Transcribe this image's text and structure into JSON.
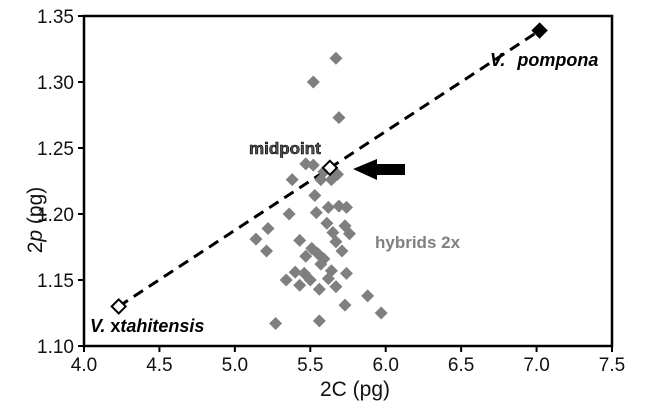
{
  "chart_data": {
    "type": "scatter",
    "xlabel": "2C (pg)",
    "ylabel_main": "2",
    "ylabel_italic": "p",
    "ylabel_unit": " (pg)",
    "xlim": [
      4.0,
      7.5
    ],
    "ylim": [
      1.1,
      1.35
    ],
    "x_ticks": [
      4.0,
      4.5,
      5.0,
      5.5,
      6.0,
      6.5,
      7.0,
      7.5
    ],
    "x_tick_labels": [
      "4.0",
      "4.5",
      "5.0",
      "5.5",
      "6.0",
      "6.5",
      "7.0",
      "7.5"
    ],
    "y_ticks": [
      1.1,
      1.15,
      1.2,
      1.25,
      1.3,
      1.35
    ],
    "y_tick_labels": [
      "1.10",
      "1.15",
      "1.20",
      "1.25",
      "1.30",
      "1.35"
    ],
    "grid": false,
    "series": [
      {
        "name": "hybrids 2x",
        "color": "#7f7f7f",
        "marker": "diamond",
        "points": [
          [
            5.52,
            1.3
          ],
          [
            5.67,
            1.318
          ],
          [
            5.69,
            1.273
          ],
          [
            5.47,
            1.238
          ],
          [
            5.52,
            1.237
          ],
          [
            5.59,
            1.232
          ],
          [
            5.57,
            1.226
          ],
          [
            5.64,
            1.226
          ],
          [
            5.68,
            1.23
          ],
          [
            5.38,
            1.226
          ],
          [
            5.53,
            1.214
          ],
          [
            5.62,
            1.205
          ],
          [
            5.69,
            1.206
          ],
          [
            5.74,
            1.205
          ],
          [
            5.36,
            1.2
          ],
          [
            5.54,
            1.201
          ],
          [
            5.22,
            1.189
          ],
          [
            5.61,
            1.193
          ],
          [
            5.73,
            1.191
          ],
          [
            5.65,
            1.186
          ],
          [
            5.76,
            1.185
          ],
          [
            5.14,
            1.181
          ],
          [
            5.43,
            1.18
          ],
          [
            5.67,
            1.179
          ],
          [
            5.21,
            1.172
          ],
          [
            5.51,
            1.174
          ],
          [
            5.55,
            1.17
          ],
          [
            5.47,
            1.168
          ],
          [
            5.59,
            1.166
          ],
          [
            5.71,
            1.172
          ],
          [
            5.57,
            1.162
          ],
          [
            5.4,
            1.156
          ],
          [
            5.46,
            1.155
          ],
          [
            5.64,
            1.157
          ],
          [
            5.74,
            1.155
          ],
          [
            5.34,
            1.15
          ],
          [
            5.5,
            1.15
          ],
          [
            5.62,
            1.151
          ],
          [
            5.43,
            1.146
          ],
          [
            5.56,
            1.143
          ],
          [
            5.67,
            1.145
          ],
          [
            5.73,
            1.131
          ],
          [
            5.88,
            1.138
          ],
          [
            5.97,
            1.125
          ],
          [
            5.56,
            1.119
          ],
          [
            5.27,
            1.117
          ]
        ]
      },
      {
        "name": "V. pompona",
        "color": "#000000",
        "marker": "diamond-filled",
        "points": [
          [
            7.02,
            1.339
          ]
        ]
      },
      {
        "name": "V. xtahitensis",
        "color": "#000000",
        "marker": "diamond-open",
        "points": [
          [
            4.23,
            1.13
          ]
        ]
      },
      {
        "name": "midpoint",
        "color": "#000000",
        "marker": "diamond-open",
        "points": [
          [
            5.63,
            1.235
          ]
        ]
      }
    ],
    "trend_line": {
      "from": [
        4.23,
        1.13
      ],
      "to": [
        7.02,
        1.339
      ],
      "style": "dashed"
    },
    "annotations": {
      "midpoint": "midpoint",
      "hybrids": "hybrids 2x",
      "pompona_prefix": "V.",
      "pompona_name": "pompona",
      "tahitensis_prefix": "V.",
      "tahitensis_x": " x",
      "tahitensis_name": "tahitensis"
    }
  }
}
